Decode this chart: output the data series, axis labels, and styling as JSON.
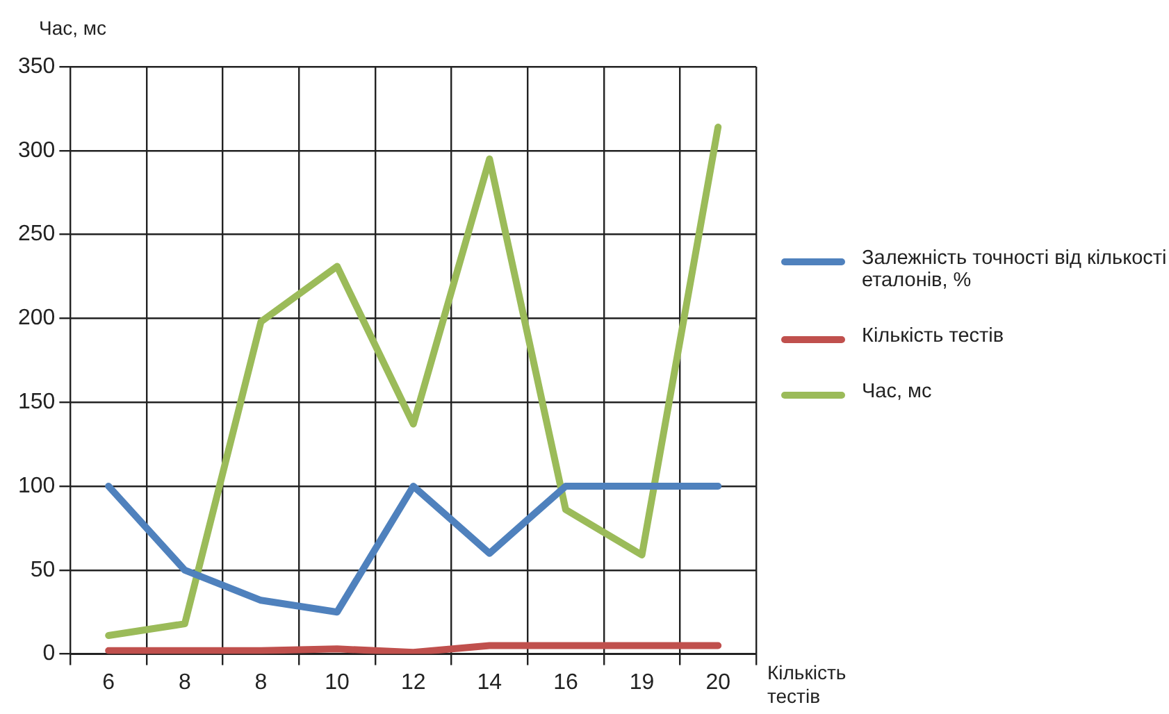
{
  "chart_data": {
    "type": "line",
    "ylabel": "Час, мс",
    "xlabel": "Кількість тестів",
    "categories": [
      "6",
      "8",
      "8",
      "10",
      "12",
      "14",
      "16",
      "19",
      "20"
    ],
    "series": [
      {
        "name": "Залежність точності від кількості еталонів, %",
        "color": "#4f81bd",
        "values": [
          100,
          50,
          32,
          25,
          100,
          60,
          100,
          100,
          100
        ]
      },
      {
        "name": "Кількість тестів",
        "color": "#c0504d",
        "values": [
          2,
          2,
          2,
          3,
          1,
          5,
          5,
          5,
          5
        ]
      },
      {
        "name": "Час, мс",
        "color": "#9bbb59",
        "values": [
          11,
          18,
          198,
          231,
          137,
          295,
          86,
          59,
          314
        ]
      }
    ],
    "ylim": [
      0,
      350
    ],
    "yticks": [
      0,
      50,
      100,
      150,
      200,
      250,
      300,
      350
    ],
    "grid": true,
    "legend": "right",
    "marker": "none",
    "line_style": "solid"
  }
}
